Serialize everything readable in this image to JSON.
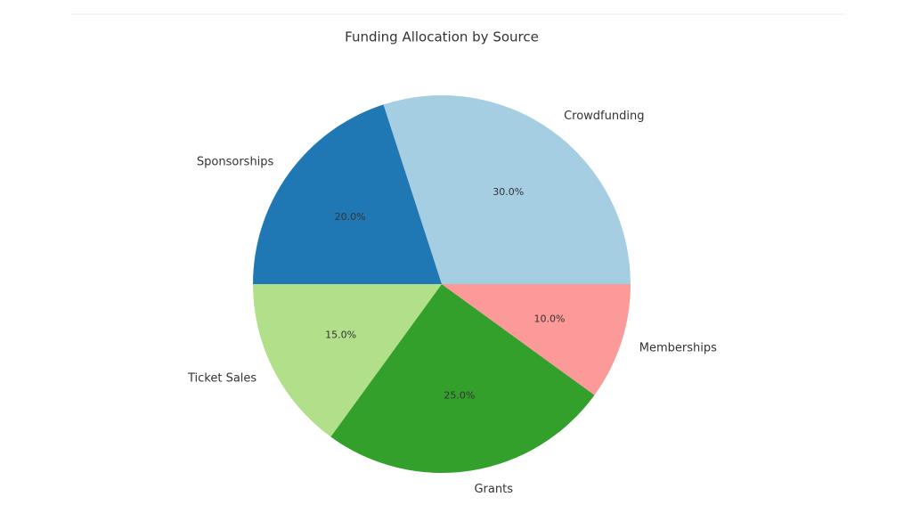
{
  "chart_data": {
    "type": "pie",
    "title": "Funding Allocation by Source",
    "categories": [
      "Crowdfunding",
      "Sponsorships",
      "Ticket Sales",
      "Grants",
      "Memberships"
    ],
    "values": [
      30,
      20,
      15,
      25,
      10
    ],
    "value_labels": [
      "30.0%",
      "20.0%",
      "15.0%",
      "25.0%",
      "10.0%"
    ],
    "colors": [
      "#a6cee3",
      "#1f78b4",
      "#b2df8a",
      "#33a02c",
      "#fb9a99"
    ]
  }
}
